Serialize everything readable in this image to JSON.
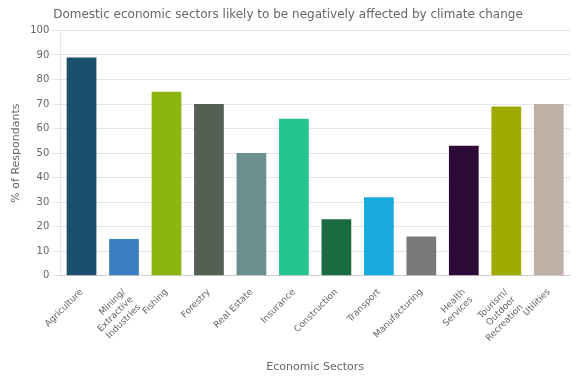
{
  "chart_data": {
    "type": "bar",
    "title": "Domestic economic sectors likely to be negatively affected by climate change",
    "xlabel": "Economic Sectors",
    "ylabel": "% of Respondants",
    "categories": [
      "Agriculture",
      "Mining/\nExtractive\nIndustries",
      "Fishing",
      "Forestry",
      "Real Estate",
      "Insurance",
      "Construction",
      "Transport",
      "Manufacturing",
      "Health\nServices",
      "Tourism/\nOutdoor\nRecreation",
      "Utilities"
    ],
    "values": [
      89,
      15,
      75,
      70,
      50,
      64,
      23,
      32,
      16,
      53,
      69,
      70
    ],
    "colors": [
      "#1b4f6e",
      "#3a7fbf",
      "#8db510",
      "#556055",
      "#6a9090",
      "#25c490",
      "#1a6b40",
      "#18aadc",
      "#7a7a7a",
      "#2e0a38",
      "#a0aa00",
      "#bfb0a8"
    ],
    "ylim": [
      0,
      100
    ],
    "yticks": [
      0,
      10,
      20,
      30,
      40,
      50,
      60,
      70,
      80,
      90,
      100
    ],
    "grid": true
  }
}
